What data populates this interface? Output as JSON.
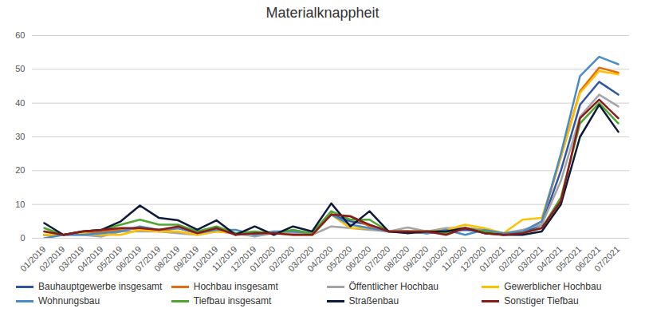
{
  "chart_data": {
    "type": "line",
    "title": "Materialknappheit",
    "categories": [
      "01/2019",
      "02/2019",
      "03/2019",
      "04/2019",
      "05/2019",
      "06/2019",
      "07/2019",
      "08/2019",
      "09/2019",
      "10/2019",
      "11/2019",
      "12/2019",
      "01/2020",
      "02/2020",
      "03/2020",
      "04/2020",
      "05/2020",
      "06/2020",
      "07/2020",
      "08/2020",
      "09/2020",
      "10/2020",
      "11/2020",
      "12/2020",
      "01/2021",
      "02/2021",
      "03/2021",
      "04/2021",
      "05/2021",
      "06/2021",
      "07/2021"
    ],
    "series": [
      {
        "name": "Bauhauptgewerbe insgesamt",
        "color": "#2f55a4",
        "values": [
          1,
          1,
          1.5,
          2,
          2.5,
          3,
          2.5,
          3,
          1.5,
          2.5,
          1.5,
          1.5,
          1.5,
          1.5,
          1.5,
          7,
          5,
          4,
          2,
          2,
          1.5,
          2,
          2.5,
          2,
          1.5,
          1.5,
          4,
          20,
          39.5,
          46.3,
          42.5
        ]
      },
      {
        "name": "Hochbau insgesamt",
        "color": "#e46c0a",
        "values": [
          1,
          1,
          1.5,
          2,
          2.5,
          3,
          2,
          3,
          1.5,
          2.5,
          1.5,
          1.5,
          1.5,
          1.5,
          1.5,
          7,
          6.5,
          3.5,
          2,
          2,
          2,
          2.5,
          3,
          2.5,
          1.5,
          2,
          5,
          24,
          43.5,
          50.5,
          49
        ]
      },
      {
        "name": "Öffentlicher Hochbau",
        "color": "#a5a5a5",
        "values": [
          2,
          1,
          1,
          0.5,
          2,
          2,
          2,
          1.5,
          1,
          2,
          1.5,
          0.5,
          1.5,
          1.5,
          1,
          3.5,
          3,
          2.5,
          2,
          3.2,
          2,
          3,
          3,
          2.5,
          1.5,
          2.5,
          4,
          17,
          36,
          42.5,
          39
        ]
      },
      {
        "name": "Gewerblicher Hochbau",
        "color": "#ffc000",
        "values": [
          1,
          1,
          1.5,
          1,
          1,
          2.5,
          2,
          2,
          1,
          2,
          1.5,
          1.5,
          1.5,
          1,
          1,
          7,
          3,
          3,
          2,
          2,
          2,
          2.5,
          4,
          3,
          1.5,
          5.5,
          6,
          24,
          43,
          49.5,
          48.5
        ]
      },
      {
        "name": "Wohnungsbau",
        "color": "#4a8bc4",
        "values": [
          0,
          1,
          1,
          1.5,
          2,
          3.5,
          2.5,
          3,
          1.5,
          2.5,
          2.5,
          1,
          2,
          2,
          1.5,
          7,
          4,
          3,
          2,
          2,
          1.5,
          2.5,
          1,
          2.5,
          1.5,
          2,
          5,
          25,
          48,
          53.7,
          51.5
        ]
      },
      {
        "name": "Tiefbau insgesamt",
        "color": "#4ea72e",
        "values": [
          3,
          1,
          2,
          2.5,
          4,
          5.5,
          4,
          4,
          2,
          3.5,
          1.5,
          2,
          1.5,
          2.5,
          1.5,
          8,
          5.5,
          5.5,
          2,
          2,
          2,
          1.5,
          3,
          2,
          1,
          1.5,
          3,
          12,
          34,
          40,
          34
        ]
      },
      {
        "name": "Straßenbau",
        "color": "#0d1a3a",
        "values": [
          4.5,
          1,
          2,
          2.5,
          5,
          9.7,
          6,
          5.3,
          2.5,
          5.3,
          1,
          3.5,
          1,
          3.5,
          2,
          10.3,
          3.5,
          8,
          2,
          1.5,
          2,
          2,
          3,
          1.5,
          1,
          1,
          2,
          10,
          30,
          39.5,
          31.5
        ]
      },
      {
        "name": "Sonstiger Tiefbau",
        "color": "#8b1a1a",
        "values": [
          2,
          1,
          2,
          2.5,
          3,
          3,
          2.5,
          3.5,
          1.5,
          3,
          1,
          1.5,
          1.5,
          1,
          1,
          7,
          6.5,
          4,
          2,
          2,
          2,
          1,
          3,
          1.5,
          1,
          1.5,
          3,
          11,
          35.5,
          41,
          35.5
        ]
      }
    ],
    "ylim": [
      0,
      60
    ],
    "yticks": [
      0,
      10,
      20,
      30,
      40,
      50,
      60
    ],
    "grid": true,
    "legend": "bottom"
  }
}
